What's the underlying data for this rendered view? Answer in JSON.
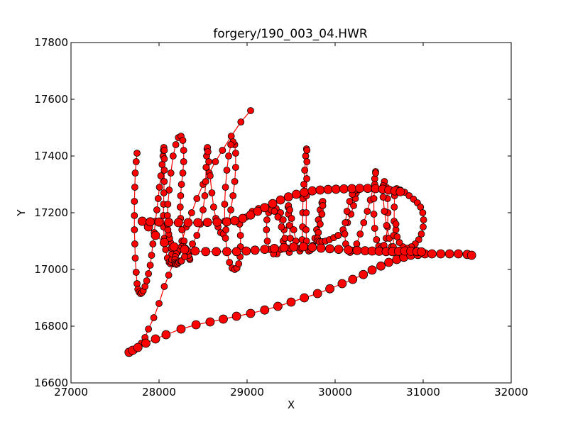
{
  "chart_data": {
    "type": "line",
    "title": "forgery/190_003_04.HWR",
    "xlabel": "X",
    "ylabel": "Y",
    "xlim": [
      27000,
      32000
    ],
    "ylim": [
      16600,
      17800
    ],
    "x_ticks": [
      "27000",
      "28000",
      "29000",
      "30000",
      "31000",
      "32000"
    ],
    "y_ticks": [
      "16600",
      "16800",
      "17000",
      "17200",
      "17400",
      "17600",
      "17800"
    ],
    "grid": false,
    "legend": "none",
    "line_color": "#ff0000",
    "marker_fill": "#ff0000",
    "marker_edge": "#000000",
    "series": [
      {
        "x": [
          29040,
          28930,
          28820,
          28720,
          28640,
          28570,
          28500,
          28430,
          28370,
          28310,
          28260,
          28210,
          28160,
          28110,
          28060,
          28000,
          27940,
          27880,
          27840,
          27800,
          27760,
          27720,
          27690,
          27670,
          27660
        ],
        "y": [
          17560,
          17520,
          17470,
          17420,
          17380,
          17340,
          17300,
          17250,
          17200,
          17150,
          17100,
          17060,
          17020,
          16980,
          16940,
          16880,
          16830,
          16790,
          16760,
          16740,
          16725,
          16715,
          16710,
          16708,
          16708
        ]
      },
      {
        "x": [
          27660,
          27700,
          27760,
          27850,
          27960,
          28080,
          28250,
          28420,
          28580,
          28730,
          28880,
          29040,
          29200,
          29350,
          29500,
          29650,
          29800,
          29940,
          30080,
          30200,
          30320,
          30420,
          30520,
          30610,
          30700,
          30780,
          30860,
          30940,
          31020,
          31100,
          31200,
          31300,
          31400,
          31500,
          31550
        ],
        "y": [
          16708,
          16715,
          16725,
          16740,
          16755,
          16770,
          16790,
          16805,
          16815,
          16825,
          16835,
          16845,
          16857,
          16870,
          16885,
          16900,
          16915,
          16932,
          16950,
          16965,
          16982,
          16998,
          17012,
          17025,
          17035,
          17043,
          17050,
          17053,
          17055,
          17055,
          17055,
          17055,
          17055,
          17053,
          17050
        ]
      },
      {
        "x": [
          27750,
          27740,
          27730,
          27725,
          27720,
          27720,
          27720,
          27725,
          27730,
          27740,
          27750,
          27760,
          27775,
          27790,
          27805,
          27820,
          27840,
          27860,
          27880,
          27900,
          27915,
          27930,
          27945,
          27960,
          27975,
          27990,
          28005,
          28020,
          28035,
          28045,
          28050,
          28055,
          28060,
          28060,
          28060,
          28058,
          28055,
          28052,
          28050,
          28052,
          28060,
          28075,
          28095,
          28115,
          28130,
          28140,
          28145,
          28145,
          28140,
          28130,
          28120,
          28110,
          28100,
          28095,
          28095,
          28100,
          28115,
          28135,
          28160,
          28190,
          28220,
          28250,
          28270,
          28280,
          28280,
          28270,
          28255,
          28245,
          28240,
          28245,
          28260,
          28285,
          28310,
          28330,
          28345,
          28350,
          28345,
          28335,
          28320,
          28300,
          28280,
          28255,
          28230,
          28210,
          28195,
          28185,
          28180,
          28180,
          28185,
          28195,
          28210,
          28225,
          28240,
          28255
        ],
        "y": [
          17410,
          17380,
          17340,
          17290,
          17240,
          17190,
          17140,
          17090,
          17040,
          16990,
          16950,
          16930,
          16920,
          16915,
          16918,
          16925,
          16940,
          16960,
          16985,
          17015,
          17050,
          17090,
          17130,
          17170,
          17210,
          17250,
          17290,
          17330,
          17370,
          17400,
          17420,
          17430,
          17420,
          17390,
          17350,
          17310,
          17270,
          17230,
          17190,
          17150,
          17110,
          17070,
          17040,
          17025,
          17020,
          17025,
          17035,
          17055,
          17075,
          17095,
          17110,
          17125,
          17140,
          17160,
          17190,
          17230,
          17280,
          17340,
          17400,
          17440,
          17465,
          17470,
          17455,
          17420,
          17380,
          17340,
          17300,
          17260,
          17220,
          17180,
          17140,
          17100,
          17070,
          17050,
          17040,
          17035,
          17040,
          17050,
          17065,
          17075,
          17080,
          17080,
          17075,
          17065,
          17055,
          17045,
          17035,
          17025,
          17020,
          17018,
          17020,
          17025,
          17030,
          17030
        ]
      },
      {
        "x": [
          28255,
          28290,
          28330,
          28380,
          28430,
          28470,
          28500,
          28520,
          28530,
          28535,
          28540,
          28545,
          28550,
          28555,
          28565,
          28580,
          28600,
          28620,
          28645,
          28670,
          28700,
          28730,
          28760,
          28790,
          28815,
          28840,
          28860,
          28870,
          28870,
          28860,
          28840,
          28815,
          28790,
          28770,
          28755,
          28745,
          28745,
          28755,
          28775,
          28800,
          28830,
          28860,
          28885,
          28905,
          28920,
          28925,
          28925,
          28915
        ],
        "y": [
          17030,
          17045,
          17065,
          17090,
          17120,
          17160,
          17210,
          17260,
          17310,
          17360,
          17400,
          17425,
          17430,
          17415,
          17380,
          17330,
          17270,
          17220,
          17180,
          17150,
          17130,
          17125,
          17140,
          17170,
          17210,
          17260,
          17310,
          17360,
          17410,
          17440,
          17450,
          17440,
          17400,
          17350,
          17290,
          17230,
          17170,
          17110,
          17060,
          17025,
          17005,
          17000,
          17005,
          17020,
          17045,
          17080,
          17120,
          17160
        ]
      },
      {
        "x": [
          28915,
          28990,
          29060,
          29130,
          29200,
          29270,
          29330,
          29380,
          29410,
          29420,
          29410,
          29380,
          29340,
          29300,
          29260,
          29230,
          29220,
          29225,
          29245,
          29275,
          29310,
          29350,
          29390,
          29430,
          29460,
          29480,
          29490,
          29490,
          29480,
          29470,
          29465,
          29470,
          29485,
          29505,
          29530,
          29555,
          29580,
          29600,
          29615,
          29625,
          29630,
          29632,
          29635
        ],
        "y": [
          17160,
          17185,
          17205,
          17215,
          17220,
          17220,
          17215,
          17200,
          17175,
          17140,
          17100,
          17070,
          17055,
          17055,
          17070,
          17100,
          17140,
          17175,
          17200,
          17210,
          17205,
          17185,
          17150,
          17110,
          17075,
          17060,
          17075,
          17110,
          17155,
          17195,
          17220,
          17225,
          17210,
          17180,
          17140,
          17100,
          17075,
          17065,
          17075,
          17105,
          17150,
          17200,
          17250
        ]
      },
      {
        "x": [
          29635,
          29645,
          29655,
          29665,
          29675,
          29680,
          29680,
          29678,
          29675,
          29672,
          29670,
          29675,
          29685,
          29700,
          29720,
          29745,
          29770,
          29790,
          29810,
          29830,
          29850,
          29860,
          29860,
          29850,
          29830,
          29810,
          29800,
          29805,
          29820,
          29850,
          29890,
          29935,
          29985,
          30035
        ],
        "y": [
          17250,
          17300,
          17350,
          17400,
          17425,
          17420,
          17380,
          17320,
          17260,
          17200,
          17140,
          17100,
          17075,
          17065,
          17068,
          17085,
          17110,
          17140,
          17175,
          17210,
          17235,
          17240,
          17225,
          17195,
          17160,
          17130,
          17110,
          17100,
          17097,
          17098,
          17100,
          17105,
          17112,
          17120
        ]
      },
      {
        "x": [
          30035,
          30090,
          30140,
          30180,
          30210,
          30230,
          30240,
          30235,
          30220,
          30195,
          30165,
          30135,
          30115,
          30110,
          30120,
          30140,
          30170,
          30205,
          30245,
          30285,
          30325,
          30365,
          30400,
          30430,
          30450,
          30460,
          30460,
          30450,
          30440,
          30440,
          30450,
          30470,
          30495,
          30525,
          30555,
          30580,
          30595,
          30600,
          30595,
          30580,
          30560,
          30545,
          30545,
          30560,
          30585,
          30615,
          30640,
          30655,
          30660
        ],
        "y": [
          17120,
          17140,
          17165,
          17195,
          17225,
          17250,
          17270,
          17280,
          17278,
          17265,
          17240,
          17205,
          17165,
          17125,
          17090,
          17068,
          17060,
          17068,
          17090,
          17125,
          17165,
          17205,
          17245,
          17285,
          17320,
          17345,
          17340,
          17300,
          17250,
          17195,
          17145,
          17105,
          17082,
          17075,
          17085,
          17110,
          17150,
          17200,
          17250,
          17290,
          17310,
          17295,
          17255,
          17205,
          17155,
          17110,
          17080,
          17070,
          17080
        ]
      },
      {
        "x": [
          30660,
          30665,
          30670,
          30672,
          30675,
          30680,
          30700,
          30740,
          30790,
          30840,
          30890,
          30935,
          30970,
          30995,
          31005,
          31000,
          30980,
          30950,
          30910,
          30865,
          30815,
          30770,
          30730,
          30705,
          30690,
          30690
        ],
        "y": [
          17080,
          17120,
          17170,
          17220,
          17260,
          17280,
          17285,
          17280,
          17272,
          17260,
          17248,
          17235,
          17220,
          17200,
          17175,
          17150,
          17125,
          17105,
          17090,
          17080,
          17075,
          17080,
          17095,
          17115,
          17140,
          17160
        ]
      },
      {
        "x": [
          27810,
          27880,
          27960,
          28060,
          28170,
          28290,
          28410,
          28530,
          28650,
          28770,
          28880,
          28990,
          29090,
          29200,
          29310,
          29420,
          29530,
          29640,
          29740,
          29840,
          29940,
          30040,
          30150,
          30250,
          30340,
          30420,
          30500,
          30580,
          30650,
          30720,
          30790,
          30860,
          30930,
          30980
        ],
        "y": [
          17170,
          17150,
          17120,
          17095,
          17080,
          17070,
          17065,
          17063,
          17063,
          17063,
          17063,
          17065,
          17068,
          17071,
          17074,
          17077,
          17079,
          17080,
          17078,
          17075,
          17073,
          17071,
          17069,
          17067,
          17066,
          17065,
          17064,
          17063,
          17063,
          17064,
          17065,
          17064,
          17063,
          17062
        ]
      },
      {
        "x": [
          27810,
          27900,
          28000,
          28110,
          28220,
          28330,
          28440,
          28550,
          28660,
          28770,
          28860,
          28950,
          29040,
          29120,
          29200,
          29290,
          29380,
          29470,
          29560,
          29650,
          29740,
          29830,
          29920,
          30010,
          30100,
          30190,
          30280,
          30370,
          30460,
          30540,
          30610,
          30680,
          30740
        ],
        "y": [
          17170,
          17168,
          17167,
          17166,
          17165,
          17165,
          17165,
          17166,
          17167,
          17168,
          17172,
          17180,
          17192,
          17205,
          17218,
          17232,
          17245,
          17256,
          17265,
          17272,
          17277,
          17280,
          17282,
          17283,
          17284,
          17285,
          17286,
          17286,
          17285,
          17283,
          17280,
          17277,
          17274
        ]
      }
    ]
  }
}
